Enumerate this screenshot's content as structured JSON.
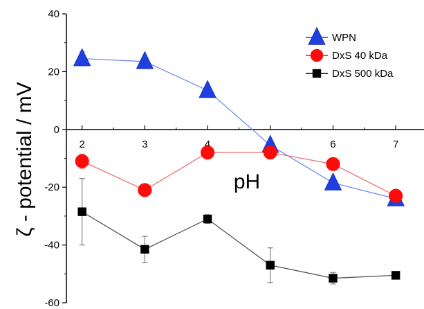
{
  "chart_data": {
    "type": "line",
    "xlabel": "pH",
    "ylabel": "ζ - potential / mV",
    "ylim": [
      -60,
      40
    ],
    "xlim": [
      1.75,
      7.45
    ],
    "yticks": [
      40,
      20,
      0,
      -20,
      -40,
      -60
    ],
    "xticks": [
      2,
      3,
      4,
      5,
      6,
      7
    ],
    "legend_position": "top-right",
    "series": [
      {
        "name": "WPN",
        "marker": "triangle",
        "color": "#1f3fe0",
        "line_color": "#6f8cf0",
        "x": [
          2,
          3,
          4,
          5,
          6,
          7
        ],
        "y": [
          24.5,
          23.5,
          13.5,
          -5.5,
          -18.5,
          -24
        ],
        "err": [
          2.5,
          1.5,
          0,
          1,
          1,
          1
        ]
      },
      {
        "name": "DxS 40 kDa",
        "marker": "circle",
        "color": "#ff0a0a",
        "line_color": "#f07070",
        "x": [
          2,
          3,
          4,
          5,
          6,
          7
        ],
        "y": [
          -11,
          -21,
          -8,
          -8,
          -12,
          -23
        ],
        "err": [
          2.5,
          1.5,
          0,
          0,
          2,
          1
        ]
      },
      {
        "name": "DxS 500 kDa",
        "marker": "square",
        "color": "#000000",
        "line_color": "#555555",
        "x": [
          2,
          3,
          4,
          5,
          6,
          7
        ],
        "y": [
          -28.5,
          -41.5,
          -31,
          -47,
          -51.5,
          -50.5
        ],
        "err": [
          11.5,
          4.5,
          1.5,
          6,
          2,
          0
        ]
      }
    ]
  }
}
